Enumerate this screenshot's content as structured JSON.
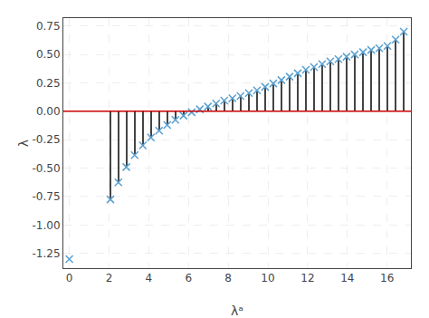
{
  "chart_data": {
    "type": "scatter",
    "xlabel": "λᵃ",
    "ylabel": "λ",
    "x": [
      0.0,
      2.07,
      2.47,
      2.87,
      3.29,
      3.7,
      4.11,
      4.52,
      4.93,
      5.34,
      5.75,
      6.16,
      6.57,
      6.98,
      7.39,
      7.8,
      8.21,
      8.62,
      9.04,
      9.45,
      9.86,
      10.27,
      10.68,
      11.09,
      11.5,
      11.91,
      12.32,
      12.73,
      13.14,
      13.55,
      13.96,
      14.37,
      14.79,
      15.2,
      15.61,
      16.02,
      16.43,
      16.84
    ],
    "series": [
      {
        "type": "stem",
        "color": "#444444",
        "values": [
          null,
          -0.775,
          -0.625,
          -0.49,
          -0.385,
          -0.3,
          -0.23,
          -0.17,
          -0.12,
          -0.075,
          -0.038,
          -0.008,
          0.018,
          0.042,
          0.068,
          0.095,
          0.115,
          0.135,
          0.16,
          0.185,
          0.215,
          0.245,
          0.275,
          0.305,
          0.335,
          0.365,
          0.39,
          0.415,
          0.44,
          0.46,
          0.48,
          0.5,
          0.52,
          0.54,
          0.555,
          0.575,
          0.63,
          0.7
        ]
      },
      {
        "type": "scatter",
        "marker": "x",
        "color": "#5aa0d0",
        "values": [
          -1.3,
          -0.775,
          -0.625,
          -0.49,
          -0.385,
          -0.3,
          -0.23,
          -0.17,
          -0.12,
          -0.075,
          -0.038,
          -0.008,
          0.018,
          0.042,
          0.068,
          0.095,
          0.115,
          0.135,
          0.16,
          0.185,
          0.215,
          0.245,
          0.275,
          0.305,
          0.335,
          0.365,
          0.39,
          0.415,
          0.44,
          0.46,
          0.48,
          0.5,
          0.52,
          0.54,
          0.555,
          0.575,
          0.63,
          0.7
        ]
      }
    ],
    "hline": {
      "y": 0.0,
      "color": "#cc0000"
    },
    "xlim": [
      -0.3,
      17.2
    ],
    "ylim": [
      -1.38,
      0.82
    ],
    "xticks": [
      0,
      2,
      4,
      6,
      8,
      10,
      12,
      14,
      16
    ],
    "yticks": [
      0.75,
      {
        "value": 0.5,
        "label": "0.50"
      },
      0.25,
      {
        "value": 0,
        "label": "0.00"
      },
      -0.25,
      {
        "value": -0.5,
        "label": "-0.50"
      },
      -0.75,
      {
        "value": -1,
        "label": "-1.00"
      },
      -1.25
    ],
    "grid": true
  }
}
